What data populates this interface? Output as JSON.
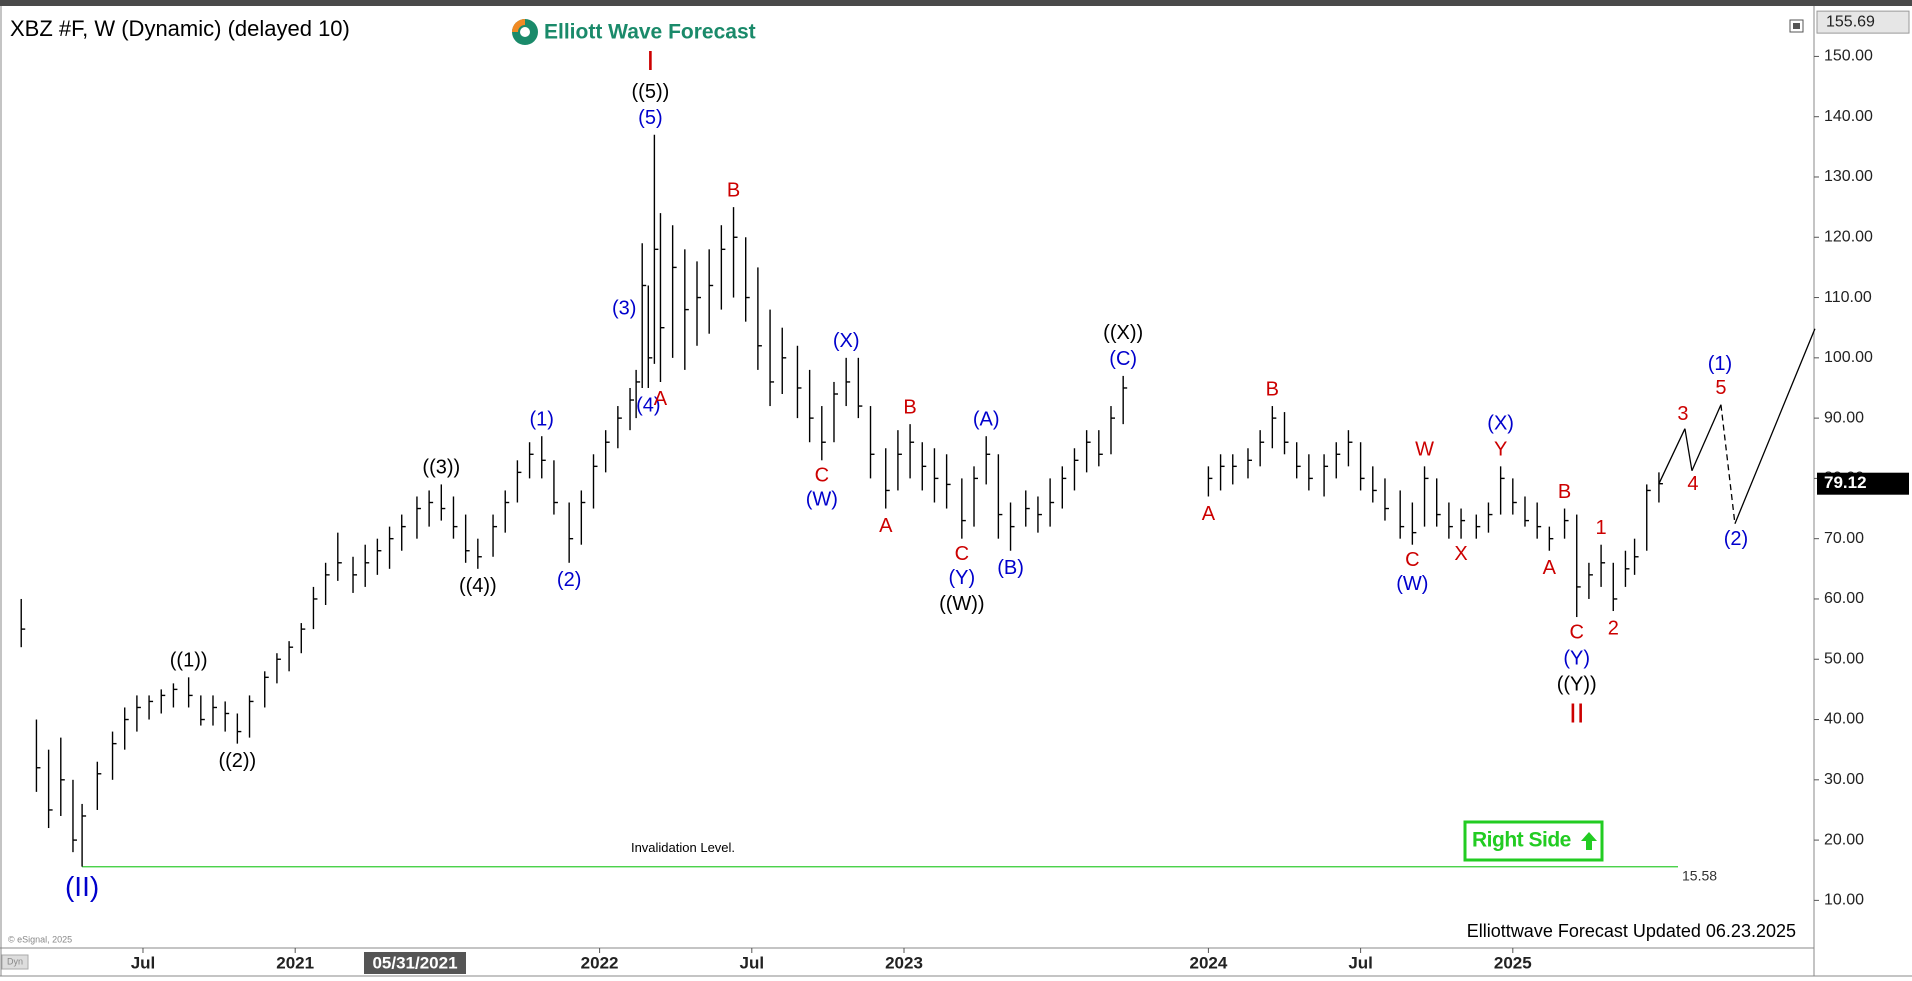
{
  "chart_data": {
    "type": "ohlc",
    "title": "XBZ #F, W (Dynamic) (delayed 10)",
    "logo": "Elliott Wave Forecast",
    "footer": "Elliottwave Forecast Updated 06.23.2025",
    "copyright": "© eSignal, 2025",
    "dyn": "Dyn",
    "cursor_label": "05/31/2021",
    "right_side": "Right Side",
    "bar_color": "#000000",
    "x": [
      2020.1,
      2020.15,
      2020.19,
      2020.23,
      2020.27,
      2020.3,
      2020.35,
      2020.4,
      2020.44,
      2020.48,
      2020.52,
      2020.56,
      2020.6,
      2020.65,
      2020.69,
      2020.73,
      2020.77,
      2020.81,
      2020.85,
      2020.9,
      2020.94,
      2020.98,
      2021.02,
      2021.06,
      2021.1,
      2021.14,
      2021.19,
      2021.23,
      2021.27,
      2021.31,
      2021.35,
      2021.4,
      2021.44,
      2021.48,
      2021.52,
      2021.56,
      2021.6,
      2021.65,
      2021.69,
      2021.73,
      2021.77,
      2021.81,
      2021.85,
      2021.9,
      2021.94,
      2021.98,
      2022.02,
      2022.06,
      2022.1,
      2022.12,
      2022.14,
      2022.16,
      2022.18,
      2022.2,
      2022.24,
      2022.28,
      2022.32,
      2022.36,
      2022.4,
      2022.44,
      2022.48,
      2022.52,
      2022.56,
      2022.6,
      2022.65,
      2022.69,
      2022.73,
      2022.77,
      2022.81,
      2022.85,
      2022.89,
      2022.94,
      2022.98,
      2023.02,
      2023.06,
      2023.1,
      2023.14,
      2023.19,
      2023.23,
      2023.27,
      2023.31,
      2023.35,
      2023.4,
      2023.44,
      2023.48,
      2023.52,
      2023.56,
      2023.6,
      2023.64,
      2023.68,
      2023.72,
      2024.0,
      2024.04,
      2024.08,
      2024.13,
      2024.17,
      2024.21,
      2024.25,
      2024.29,
      2024.33,
      2024.38,
      2024.42,
      2024.46,
      2024.5,
      2024.54,
      2024.58,
      2024.63,
      2024.67,
      2024.71,
      2024.75,
      2024.79,
      2024.83,
      2024.88,
      2024.92,
      2024.96,
      2025.0,
      2025.04,
      2025.08,
      2025.12,
      2025.17,
      2025.21,
      2025.25,
      2025.29,
      2025.33,
      2025.37,
      2025.4,
      2025.44,
      2025.48
    ],
    "high": [
      60,
      40,
      35,
      37,
      30,
      26,
      33,
      38,
      42,
      44,
      44,
      45,
      46,
      47,
      44,
      44,
      43,
      41,
      44,
      48,
      51,
      53,
      56,
      62,
      66,
      71,
      67,
      69,
      70,
      72,
      74,
      77,
      78,
      79,
      77,
      74,
      70,
      74,
      78,
      83,
      86,
      87,
      83,
      76,
      78,
      84,
      88,
      92,
      95,
      98,
      119,
      112,
      137,
      124,
      122,
      118,
      116,
      118,
      122,
      125,
      120,
      115,
      108,
      105,
      102,
      98,
      92,
      96,
      100,
      100,
      92,
      85,
      88,
      89,
      86,
      85,
      84,
      80,
      82,
      87,
      84,
      76,
      78,
      77,
      80,
      82,
      85,
      88,
      88,
      92,
      97,
      82,
      84,
      84,
      85,
      88,
      92,
      91,
      86,
      84,
      84,
      86,
      88,
      86,
      82,
      80,
      78,
      76,
      82,
      80,
      76,
      75,
      74,
      76,
      82,
      80,
      77,
      76,
      72,
      75,
      74,
      66,
      69,
      66,
      68,
      70,
      79,
      81
    ],
    "low": [
      52,
      28,
      22,
      24,
      18,
      15.6,
      25,
      30,
      35,
      38,
      40,
      41,
      42,
      42,
      39,
      39,
      38,
      36,
      37,
      42,
      46,
      48,
      51,
      55,
      59,
      63,
      61,
      62,
      64,
      65,
      68,
      70,
      72,
      73,
      70,
      66,
      65,
      67,
      71,
      76,
      80,
      80,
      74,
      66,
      69,
      75,
      81,
      85,
      88,
      90,
      95,
      95,
      99,
      96,
      100,
      98,
      102,
      104,
      108,
      110,
      106,
      98,
      92,
      94,
      90,
      86,
      83,
      86,
      92,
      90,
      80,
      75,
      78,
      80,
      78,
      76,
      75,
      70,
      72,
      79,
      70,
      68,
      72,
      71,
      72,
      75,
      78,
      81,
      82,
      84,
      89,
      77,
      78,
      79,
      80,
      82,
      85,
      84,
      80,
      78,
      77,
      80,
      82,
      78,
      76,
      73,
      70,
      69,
      72,
      72,
      70,
      70,
      70,
      71,
      74,
      74,
      72,
      70,
      68,
      70,
      57,
      60,
      62,
      58,
      62,
      64,
      68,
      76
    ],
    "close": [
      55,
      32,
      25,
      30,
      20,
      24,
      31,
      36,
      40,
      42,
      43,
      44,
      45,
      44,
      40,
      42,
      41,
      38,
      43,
      47,
      50,
      52,
      55,
      60,
      64,
      66,
      64,
      66,
      68,
      70,
      72,
      75,
      76,
      75,
      72,
      68,
      67,
      72,
      76,
      81,
      84,
      83,
      76,
      70,
      76,
      82,
      86,
      90,
      93,
      96,
      112,
      100,
      118,
      105,
      115,
      108,
      110,
      112,
      118,
      120,
      110,
      102,
      96,
      100,
      95,
      90,
      86,
      94,
      96,
      92,
      84,
      78,
      84,
      86,
      82,
      80,
      79,
      73,
      80,
      84,
      74,
      72,
      75,
      74,
      76,
      80,
      83,
      86,
      84,
      90,
      95,
      80,
      82,
      82,
      83,
      86,
      90,
      86,
      82,
      80,
      82,
      84,
      86,
      80,
      78,
      75,
      72,
      71,
      80,
      74,
      72,
      73,
      72,
      74,
      80,
      76,
      73,
      72,
      70,
      73,
      62,
      64,
      66,
      60,
      65,
      67,
      78,
      79.12
    ],
    "xlim": [
      2020.05,
      2025.95
    ],
    "xticks": [
      {
        "value": 2020.5,
        "label": "Jul"
      },
      2021,
      2022,
      {
        "value": 2022.5,
        "label": "Jul"
      },
      2023,
      2024,
      {
        "value": 2024.5,
        "label": "Jul"
      },
      2025
    ],
    "ylim": [
      2.1,
      157.7
    ],
    "yticks": [
      {
        "value": 10,
        "label": "10.00"
      },
      {
        "value": 20,
        "label": "20.00"
      },
      {
        "value": 30,
        "label": "30.00"
      },
      {
        "value": 40,
        "label": "40.00"
      },
      {
        "value": 50,
        "label": "50.00"
      },
      {
        "value": 60,
        "label": "60.00"
      },
      {
        "value": 70,
        "label": "70.00"
      },
      {
        "value": 80,
        "label": "80.00"
      },
      {
        "value": 90,
        "label": "90.00"
      },
      {
        "value": 100,
        "label": "100.00"
      },
      {
        "value": 110,
        "label": "110.00"
      },
      {
        "value": 120,
        "label": "120.00"
      },
      {
        "value": 130,
        "label": "130.00"
      },
      {
        "value": 140,
        "label": "140.00"
      },
      {
        "value": 150,
        "label": "150.00"
      }
    ],
    "top_marker": 155.69,
    "invalidation": {
      "value": 15.58,
      "label": "Invalidation Level.",
      "color": "#33cc33"
    },
    "annotations": [
      {
        "text": "(II)",
        "color": "#0000cc"
      },
      {
        "text": "((1))",
        "color": "#000000"
      },
      {
        "text": "((2))",
        "color": "#000000"
      },
      {
        "text": "((3))",
        "color": "#000000"
      },
      {
        "text": "((4))",
        "color": "#000000"
      },
      {
        "text": "(1)",
        "color": "#0000cc"
      },
      {
        "text": "(2)",
        "color": "#0000cc"
      },
      {
        "text": "(3)",
        "color": "#0000cc"
      },
      {
        "text": "(4)",
        "color": "#0000cc"
      },
      {
        "text": "(5)",
        "color": "#0000cc"
      },
      {
        "text": "((5))",
        "color": "#000000"
      },
      {
        "text": "I",
        "color": "#cc0000"
      },
      {
        "text": "A",
        "color": "#cc0000"
      },
      {
        "text": "B",
        "color": "#cc0000"
      },
      {
        "text": "C",
        "color": "#cc0000"
      },
      {
        "text": "(W)",
        "color": "#0000cc"
      },
      {
        "text": "(X)",
        "color": "#0000cc"
      },
      {
        "text": "A",
        "color": "#cc0000"
      },
      {
        "text": "B",
        "color": "#cc0000"
      },
      {
        "text": "C",
        "color": "#cc0000"
      },
      {
        "text": "(Y)",
        "color": "#0000cc"
      },
      {
        "text": "((W))",
        "color": "#000000"
      },
      {
        "text": "(A)",
        "color": "#0000cc"
      },
      {
        "text": "(B)",
        "color": "#0000cc"
      },
      {
        "text": "(C)",
        "color": "#0000cc"
      },
      {
        "text": "((X))",
        "color": "#000000"
      },
      {
        "text": "A",
        "color": "#cc0000"
      },
      {
        "text": "B",
        "color": "#cc0000"
      },
      {
        "text": "C",
        "color": "#cc0000"
      },
      {
        "text": "(W)",
        "color": "#0000cc"
      },
      {
        "text": "W",
        "color": "#cc0000"
      },
      {
        "text": "X",
        "color": "#cc0000"
      },
      {
        "text": "Y",
        "color": "#cc0000"
      },
      {
        "text": "(X)",
        "color": "#0000cc"
      },
      {
        "text": "A",
        "color": "#cc0000"
      },
      {
        "text": "B",
        "color": "#cc0000"
      },
      {
        "text": "C",
        "color": "#cc0000"
      },
      {
        "text": "(Y)",
        "color": "#0000cc"
      },
      {
        "text": "((Y))",
        "color": "#000000"
      },
      {
        "text": "II",
        "color": "#cc0000"
      },
      {
        "text": "1",
        "color": "#cc0000"
      },
      {
        "text": "2",
        "color": "#cc0000"
      },
      {
        "text": "3",
        "color": "#cc0000"
      },
      {
        "text": "4",
        "color": "#cc0000"
      },
      {
        "text": "5",
        "color": "#cc0000"
      },
      {
        "text": "(1)",
        "color": "#0000cc"
      },
      {
        "text": "(2)",
        "color": "#0000cc"
      }
    ]
  }
}
